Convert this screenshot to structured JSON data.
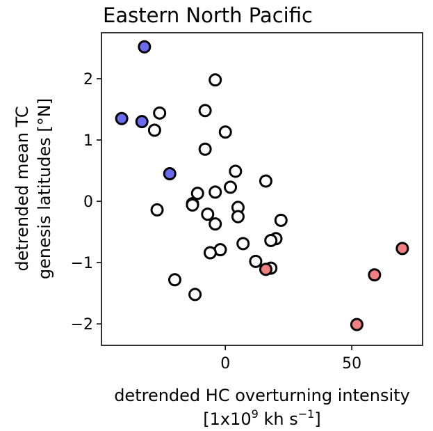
{
  "chart_data": {
    "type": "scatter",
    "title": "Eastern North Pacific",
    "xlabel_line1": "detrended HC overturning intensity",
    "xlabel_line2_prefix": "[1x10",
    "xlabel_line2_exp": "9",
    "xlabel_line2_mid": " kh s",
    "xlabel_line2_exp2": "−1",
    "xlabel_line2_suffix": "]",
    "ylabel_line1": "detrended mean TC",
    "ylabel_line2": "genesis latitudes [°N]",
    "xlim": [
      -49,
      78
    ],
    "ylim": [
      -2.35,
      2.75
    ],
    "xticks": [
      0,
      50
    ],
    "xtick_labels": [
      "0",
      "50"
    ],
    "yticks": [
      -2,
      -1,
      0,
      1,
      2
    ],
    "ytick_labels": [
      "−2",
      "−1",
      "0",
      "1",
      "2"
    ],
    "colors": {
      "blue": "#6b6bf0",
      "red": "#f28080",
      "none": "#ffffff",
      "edge": "#000000"
    },
    "points": [
      {
        "x": -32,
        "y": 2.52,
        "color": "blue"
      },
      {
        "x": -41,
        "y": 1.35,
        "color": "blue"
      },
      {
        "x": -33,
        "y": 1.3,
        "color": "blue"
      },
      {
        "x": -22,
        "y": 0.45,
        "color": "blue"
      },
      {
        "x": -4,
        "y": 1.98,
        "color": "none"
      },
      {
        "x": -26,
        "y": 1.44,
        "color": "none"
      },
      {
        "x": -8,
        "y": 1.48,
        "color": "none"
      },
      {
        "x": -28,
        "y": 1.16,
        "color": "none"
      },
      {
        "x": 0,
        "y": 1.13,
        "color": "none"
      },
      {
        "x": -8,
        "y": 0.85,
        "color": "none"
      },
      {
        "x": 4,
        "y": 0.49,
        "color": "none"
      },
      {
        "x": 16,
        "y": 0.33,
        "color": "none"
      },
      {
        "x": 2,
        "y": 0.23,
        "color": "none"
      },
      {
        "x": -11,
        "y": 0.13,
        "color": "none"
      },
      {
        "x": -4,
        "y": 0.15,
        "color": "none"
      },
      {
        "x": -13,
        "y": -0.04,
        "color": "none"
      },
      {
        "x": -13,
        "y": -0.06,
        "color": "none"
      },
      {
        "x": -27,
        "y": -0.14,
        "color": "none"
      },
      {
        "x": 5,
        "y": -0.1,
        "color": "none"
      },
      {
        "x": -7,
        "y": -0.21,
        "color": "none"
      },
      {
        "x": 5,
        "y": -0.25,
        "color": "none"
      },
      {
        "x": -4,
        "y": -0.37,
        "color": "none"
      },
      {
        "x": 22,
        "y": -0.31,
        "color": "none"
      },
      {
        "x": 20,
        "y": -0.61,
        "color": "none"
      },
      {
        "x": 18,
        "y": -0.64,
        "color": "none"
      },
      {
        "x": 7,
        "y": -0.69,
        "color": "none"
      },
      {
        "x": -2,
        "y": -0.79,
        "color": "none"
      },
      {
        "x": -6,
        "y": -0.84,
        "color": "none"
      },
      {
        "x": 12,
        "y": -0.98,
        "color": "none"
      },
      {
        "x": 18,
        "y": -1.09,
        "color": "none"
      },
      {
        "x": -20,
        "y": -1.28,
        "color": "none"
      },
      {
        "x": -12,
        "y": -1.52,
        "color": "none"
      },
      {
        "x": 16,
        "y": -1.11,
        "color": "red"
      },
      {
        "x": 70,
        "y": -0.77,
        "color": "red"
      },
      {
        "x": 59,
        "y": -1.2,
        "color": "red"
      },
      {
        "x": 52,
        "y": -2.01,
        "color": "red"
      }
    ]
  }
}
